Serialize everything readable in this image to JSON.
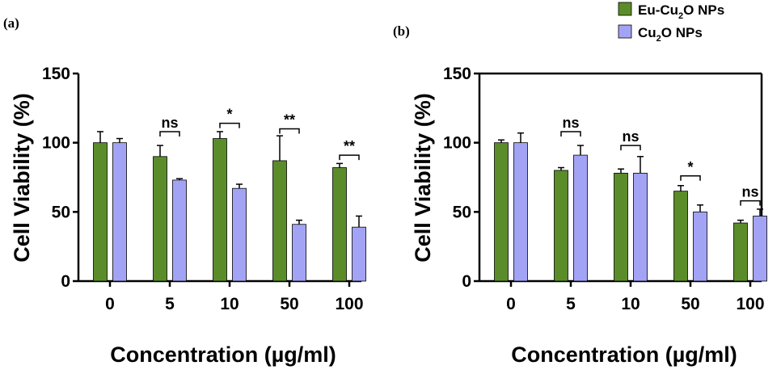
{
  "legend": {
    "entries": [
      {
        "prefix": "Eu-Cu",
        "sub": "2",
        "suffix": "O NPs",
        "color": "#5b8c2a"
      },
      {
        "prefix": "Cu",
        "sub": "2",
        "suffix": "O NPs",
        "color": "#a3a3f5"
      }
    ]
  },
  "colors": {
    "eu_cu2o": "#5b8c2a",
    "cu2o": "#a3a3f5",
    "axis": "#000000"
  },
  "chart_data": [
    {
      "panel": "(a)",
      "type": "bar",
      "ylabel": "Cell Viability (%)",
      "xlabel": "Concentration (µg/ml)",
      "categories": [
        "0",
        "5",
        "10",
        "50",
        "100"
      ],
      "ylim": [
        0,
        150
      ],
      "yticks": [
        "0",
        "50",
        "100",
        "150"
      ],
      "series": [
        {
          "name": "Eu-Cu2O NPs",
          "values": [
            100,
            90,
            103,
            87,
            82
          ],
          "errors": [
            8,
            8,
            5,
            18,
            3
          ]
        },
        {
          "name": "Cu2O NPs",
          "values": [
            100,
            73,
            67,
            41,
            39
          ],
          "errors": [
            3,
            1,
            3,
            3,
            8
          ]
        }
      ],
      "significance": [
        {
          "category": "5",
          "label": "ns",
          "level": 108
        },
        {
          "category": "10",
          "label": "*",
          "level": 114
        },
        {
          "category": "50",
          "label": "**",
          "level": 110
        },
        {
          "category": "100",
          "label": "**",
          "level": 91
        }
      ]
    },
    {
      "panel": "(b)",
      "type": "bar",
      "ylabel": "Cell Viability (%)",
      "xlabel": "Concentration (µg/ml)",
      "categories": [
        "0",
        "5",
        "10",
        "50",
        "100"
      ],
      "ylim": [
        0,
        150
      ],
      "yticks": [
        "0",
        "50",
        "100",
        "150"
      ],
      "series": [
        {
          "name": "Eu-Cu2O NPs",
          "values": [
            100,
            80,
            78,
            65,
            42
          ],
          "errors": [
            2,
            2,
            3,
            4,
            2
          ]
        },
        {
          "name": "Cu2O NPs",
          "values": [
            100,
            91,
            78,
            50,
            47
          ],
          "errors": [
            7,
            7,
            12,
            5,
            5
          ]
        }
      ],
      "significance": [
        {
          "category": "5",
          "label": "ns",
          "level": 108
        },
        {
          "category": "10",
          "label": "ns",
          "level": 98
        },
        {
          "category": "50",
          "label": "*",
          "level": 76
        },
        {
          "category": "100",
          "label": "ns",
          "level": 58
        }
      ]
    }
  ]
}
